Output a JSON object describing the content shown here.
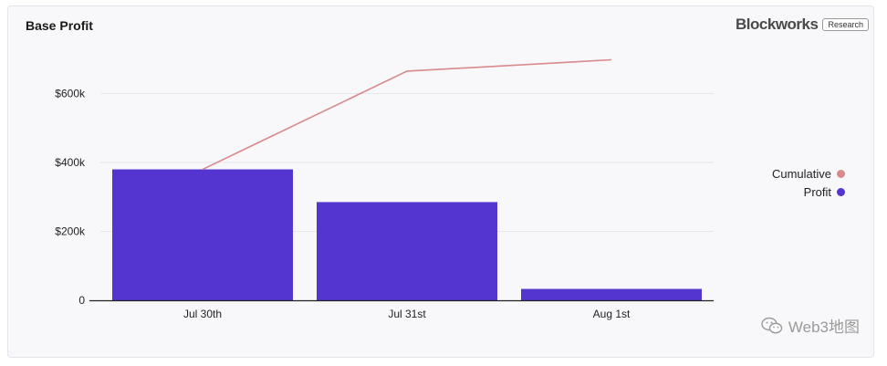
{
  "chart_data": {
    "type": "bar",
    "title": "Base Profit",
    "categories": [
      "Jul 30th",
      "Jul 31st",
      "Aug 1st"
    ],
    "series": [
      {
        "name": "Profit",
        "type": "bar",
        "values": [
          380000,
          285000,
          33000
        ]
      },
      {
        "name": "Cumulative",
        "type": "line",
        "values": [
          380000,
          665000,
          698000
        ]
      }
    ],
    "yticks": [
      {
        "value": 0,
        "label": "0"
      },
      {
        "value": 200000,
        "label": "$200k"
      },
      {
        "value": 400000,
        "label": "$400k"
      },
      {
        "value": 600000,
        "label": "$600k"
      }
    ],
    "ylim": [
      0,
      750000
    ],
    "grid": true,
    "legend_position": "right"
  },
  "colors": {
    "profit": "#5535d0",
    "cumulative": "#d98a8c"
  },
  "brand": {
    "name": "Blockworks",
    "tag": "Research"
  },
  "legend": [
    {
      "label": "Cumulative",
      "color": "#d98a8c"
    },
    {
      "label": "Profit",
      "color": "#5535d0"
    }
  ],
  "watermark": {
    "text": "Web3地图",
    "icon": "wechat-icon"
  }
}
